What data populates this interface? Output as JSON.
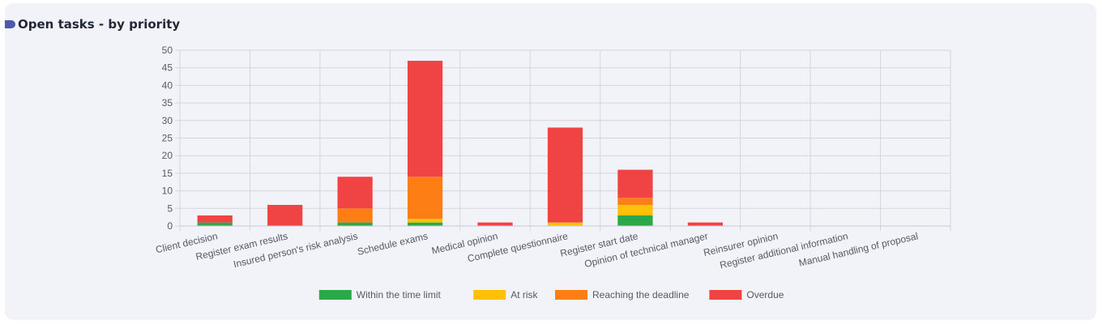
{
  "panel": {
    "title": "Open tasks - by priority"
  },
  "chart_data": {
    "type": "bar",
    "stacked": true,
    "categories": [
      "Client decision",
      "Register exam results",
      "Insured person's risk analysis",
      "Schedule exams",
      "Medical opinion",
      "Complete questionnaire",
      "Register start date",
      "Opinion of technical manager",
      "Reinsurer opinion",
      "Register additional information",
      "Manual handling of proposal"
    ],
    "series": [
      {
        "name": "Within the time limit",
        "color": "#2ba84a",
        "values": [
          1,
          0,
          1,
          1,
          0,
          0,
          3,
          0,
          0,
          0,
          0
        ]
      },
      {
        "name": "At risk",
        "color": "#ffc107",
        "values": [
          0,
          0,
          0,
          1,
          0,
          1,
          3,
          0,
          0,
          0,
          0
        ]
      },
      {
        "name": "Reaching the deadline",
        "color": "#fd7e14",
        "values": [
          0,
          0,
          4,
          12,
          0,
          0,
          2,
          0,
          0,
          0,
          0
        ]
      },
      {
        "name": "Overdue",
        "color": "#f04444",
        "values": [
          2,
          6,
          9,
          33,
          1,
          27,
          8,
          1,
          0,
          0,
          0
        ]
      }
    ],
    "ylim": [
      0,
      50
    ],
    "yticks": [
      0,
      5,
      10,
      15,
      20,
      25,
      30,
      35,
      40,
      45,
      50
    ],
    "xlabel": "",
    "ylabel": "",
    "grid": true,
    "legend_position": "bottom"
  }
}
